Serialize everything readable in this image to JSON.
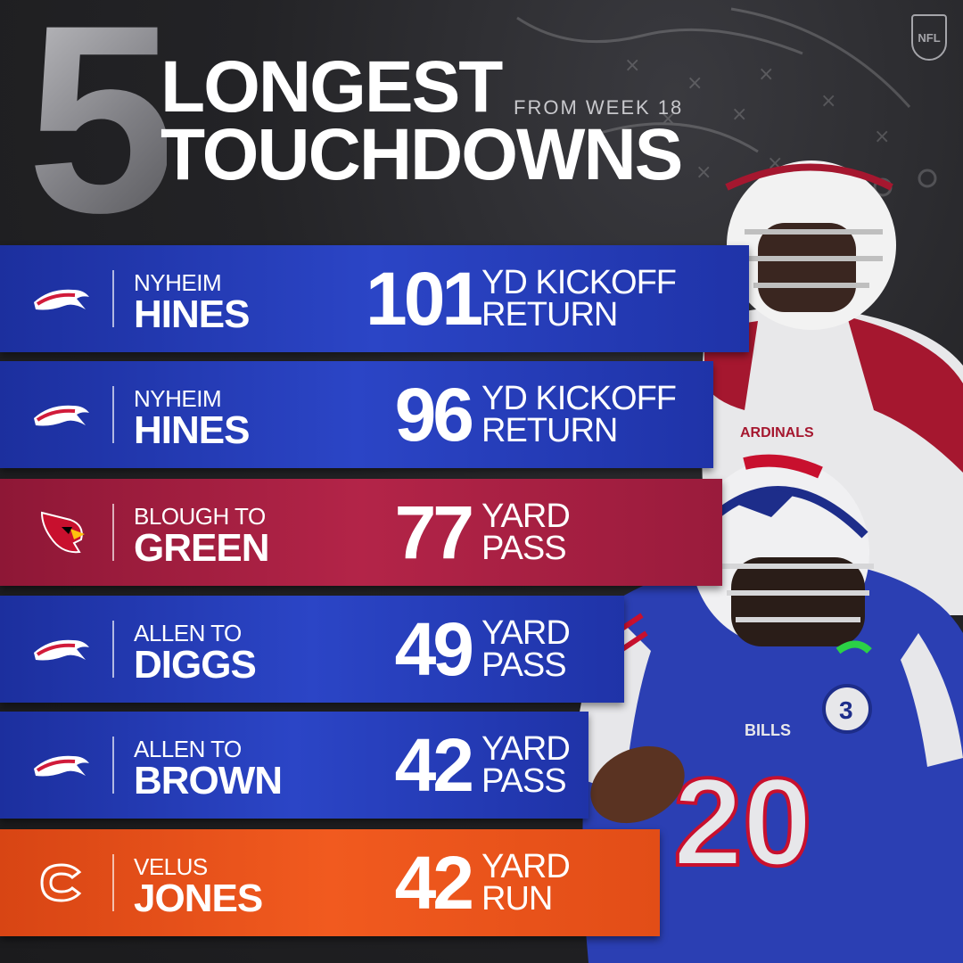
{
  "header": {
    "number": "5",
    "title_line1": "LONGEST",
    "title_line2": "TOUCHDOWNS",
    "subtitle": "FROM WEEK 18",
    "league_logo": "NFL"
  },
  "rows": [
    {
      "team": "bills",
      "name_top": "NYHEIM",
      "name_bottom": "HINES",
      "yards": "101",
      "desc_top": "YD KICKOFF",
      "desc_bottom": "RETURN",
      "color": "#2b45c6"
    },
    {
      "team": "bills",
      "name_top": "NYHEIM",
      "name_bottom": "HINES",
      "yards": "96",
      "desc_top": "YD KICKOFF",
      "desc_bottom": "RETURN",
      "color": "#2b45c6"
    },
    {
      "team": "cardinals",
      "name_top": "BLOUGH TO",
      "name_bottom": "GREEN",
      "yards": "77",
      "desc_top": "YARD",
      "desc_bottom": "PASS",
      "color": "#b32448"
    },
    {
      "team": "bills",
      "name_top": "ALLEN TO",
      "name_bottom": "DIGGS",
      "yards": "49",
      "desc_top": "YARD",
      "desc_bottom": "PASS",
      "color": "#2b45c6"
    },
    {
      "team": "bills",
      "name_top": "ALLEN TO",
      "name_bottom": "BROWN",
      "yards": "42",
      "desc_top": "YARD",
      "desc_bottom": "PASS",
      "color": "#2b45c6"
    },
    {
      "team": "bears",
      "name_top": "VELUS",
      "name_bottom": "JONES",
      "yards": "42",
      "desc_top": "YARD",
      "desc_bottom": "RUN",
      "color": "#f15a1f"
    }
  ],
  "jersey_numbers": {
    "bills_player": "20",
    "patch": "3"
  },
  "jersey_text": {
    "bills": "BILLS",
    "cardinals": "ARDINALS"
  }
}
